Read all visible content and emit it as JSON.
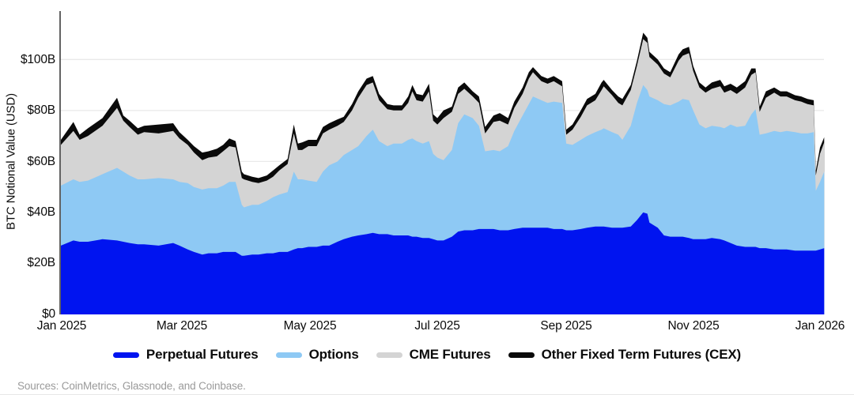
{
  "meta": {
    "sources_note": "Sources: CoinMetrics, Glassnode, and Coinbase."
  },
  "chart_data": {
    "type": "area",
    "stacked": true,
    "title": "",
    "ylabel": "BTC Notional Value (USD)",
    "unit": "billions USD",
    "grid": "horizontal",
    "legend_position": "bottom",
    "ylim": [
      0,
      119
    ],
    "x_days_range": [
      0,
      367
    ],
    "y_ticks": [
      0,
      20,
      40,
      60,
      80,
      100
    ],
    "y_tick_labels": [
      "$0",
      "$20B",
      "$40B",
      "$60B",
      "$80B",
      "$100B"
    ],
    "x_tick_days": [
      0,
      59,
      120,
      181,
      243,
      304,
      365
    ],
    "x_tick_labels": [
      "Jan 2025",
      "Mar 2025",
      "May 2025",
      "Jul 2025",
      "Sep 2025",
      "Nov 2025",
      "Jan 2026"
    ],
    "axis_color": "#3c3c3c",
    "gridline_color": "#e9e9e9",
    "days": [
      0,
      6,
      9,
      13,
      20,
      27,
      30,
      33,
      37,
      40,
      47,
      54,
      57,
      61,
      64,
      68,
      71,
      75,
      78,
      81,
      84,
      87,
      88,
      92,
      95,
      99,
      102,
      105,
      109,
      112,
      114,
      116,
      119,
      123,
      126,
      129,
      133,
      136,
      140,
      143,
      147,
      150,
      153,
      157,
      160,
      164,
      167,
      169,
      171,
      174,
      177,
      179,
      181,
      184,
      188,
      191,
      194,
      198,
      201,
      204,
      208,
      211,
      215,
      218,
      222,
      225,
      227,
      231,
      234,
      237,
      241,
      243,
      246,
      250,
      253,
      257,
      260,
      261,
      265,
      268,
      270,
      274,
      277,
      280,
      282,
      283,
      287,
      290,
      293,
      297,
      299,
      302,
      304,
      307,
      310,
      313,
      317,
      319,
      322,
      325,
      329,
      332,
      334,
      336,
      339,
      343,
      346,
      349,
      353,
      356,
      359,
      362,
      363,
      365,
      367
    ],
    "series": [
      {
        "name": "Perpetual Futures",
        "color": "#0014f0",
        "values": [
          27,
          29,
          28.5,
          28.5,
          29.5,
          29,
          28.5,
          28,
          27.5,
          27.5,
          27,
          28,
          27,
          25.5,
          24.5,
          23.5,
          24,
          24,
          24.5,
          24.5,
          24.5,
          23,
          23,
          23.5,
          23.5,
          24,
          24,
          24.5,
          24.5,
          25.5,
          26,
          26,
          26.5,
          26.5,
          27,
          27,
          28.5,
          29.5,
          30.5,
          31,
          31.5,
          32,
          31.5,
          31.5,
          31,
          31,
          31,
          30.5,
          30.5,
          30,
          30,
          29.5,
          29,
          29,
          30.5,
          32.5,
          33,
          33,
          33.5,
          33.5,
          33.5,
          33,
          33,
          33.5,
          34,
          34,
          34,
          34,
          34,
          33.5,
          33.5,
          33,
          33,
          33.5,
          34,
          34.5,
          34.5,
          34.5,
          34,
          34,
          34,
          34.5,
          37,
          40,
          39.5,
          36,
          34,
          31,
          30.5,
          30.5,
          30.5,
          30,
          29.5,
          29.5,
          29.5,
          30,
          29.5,
          29,
          28,
          27,
          26.5,
          26.5,
          26.5,
          26,
          26,
          25.5,
          25.5,
          25.5,
          25,
          25,
          25,
          25,
          25,
          25.5,
          26
        ]
      },
      {
        "name": "Options",
        "color": "#8ec9f4",
        "values": [
          23.5,
          24,
          23.5,
          24,
          25.5,
          28.5,
          27.5,
          26.5,
          25.5,
          25.5,
          26.5,
          25,
          25,
          26,
          25.5,
          25.5,
          25.5,
          25.5,
          26,
          27.5,
          27.5,
          20,
          19,
          19.5,
          19.5,
          20.5,
          22,
          22.5,
          23.5,
          30.5,
          27,
          27,
          26,
          25.5,
          29,
          31.5,
          31.5,
          33,
          34,
          35,
          38.5,
          40.5,
          36.5,
          34.5,
          36,
          36,
          37.5,
          38.5,
          37.5,
          37,
          38,
          33.5,
          32.5,
          31.5,
          34,
          42.5,
          45.5,
          44,
          40.5,
          30.5,
          31,
          31,
          33,
          38.5,
          44,
          48.5,
          51.5,
          50,
          49,
          50,
          49.5,
          34,
          33.5,
          35,
          36,
          37,
          38,
          38.5,
          37.5,
          36.5,
          34.5,
          39.5,
          46,
          50,
          48.5,
          49.5,
          50,
          51.5,
          51.5,
          53,
          54,
          54,
          50.5,
          45,
          43.5,
          44,
          44,
          44,
          46.5,
          46.5,
          47.5,
          52,
          54,
          44.5,
          45,
          46.5,
          46,
          46.5,
          46.5,
          46,
          46,
          46.5,
          23.5,
          26.5,
          30
        ]
      },
      {
        "name": "CME Futures",
        "color": "#d4d4d4",
        "values": [
          16,
          19,
          16.5,
          17.5,
          19,
          23.5,
          20,
          19,
          17.5,
          18.5,
          17.5,
          19,
          17,
          15,
          13.5,
          11.5,
          12,
          12.5,
          13.5,
          14,
          13.5,
          10.5,
          11,
          9,
          8.5,
          8,
          8,
          9.5,
          11,
          15,
          11.5,
          11.5,
          13.5,
          14,
          15,
          14,
          14,
          13,
          15.5,
          19,
          20,
          18.5,
          16,
          14.5,
          13,
          13,
          14.5,
          18.5,
          16,
          16.5,
          19.5,
          13,
          13,
          16.5,
          15,
          11.5,
          10,
          8.5,
          9,
          7,
          11,
          12,
          8.5,
          9,
          8.5,
          10,
          9.5,
          7.5,
          7.5,
          8,
          6.5,
          3.5,
          6,
          9,
          12,
          12.5,
          15.5,
          16.5,
          14.5,
          12.5,
          13.5,
          14,
          14.5,
          18,
          18.5,
          15.5,
          14,
          12,
          11,
          16,
          17,
          18.5,
          15.5,
          14.5,
          14,
          14.5,
          16,
          14,
          13.5,
          13,
          15,
          15.5,
          14.5,
          9,
          14,
          15,
          14,
          13.5,
          12.5,
          12.5,
          11.5,
          10.5,
          6,
          11,
          11.5
        ]
      },
      {
        "name": "Other Fixed Term Futures (CEX)",
        "color": "#0a0a0a",
        "values": [
          2,
          3.5,
          2,
          3,
          3,
          4,
          2,
          2.5,
          2.5,
          2.5,
          3.5,
          3,
          2.5,
          2,
          2.5,
          3,
          2.5,
          3,
          2.5,
          3,
          2.5,
          2.5,
          2,
          2,
          2,
          2,
          2.5,
          2,
          2,
          3.5,
          2.5,
          3,
          2.5,
          2.5,
          2.5,
          2.5,
          2.5,
          2,
          2.5,
          2.5,
          2.5,
          2.5,
          2.5,
          2,
          2,
          2,
          2.5,
          2.5,
          2.5,
          2.5,
          3,
          2.5,
          2.5,
          3,
          2,
          2.5,
          2.5,
          2,
          2.5,
          2.5,
          2.5,
          3,
          2.5,
          2.5,
          2.5,
          2.5,
          2,
          2,
          2,
          2,
          2,
          2,
          2,
          2.5,
          2.5,
          2.5,
          3,
          2.5,
          2,
          2.5,
          2.5,
          2,
          2,
          2.5,
          2,
          2,
          2,
          2,
          2,
          2.5,
          2.5,
          2.5,
          2,
          2,
          2,
          2.5,
          2.5,
          2.5,
          2.5,
          2.5,
          2.5,
          2.5,
          1.5,
          2,
          2.5,
          2,
          2,
          2,
          2,
          2,
          2,
          2,
          2,
          2.5,
          2
        ]
      }
    ]
  }
}
